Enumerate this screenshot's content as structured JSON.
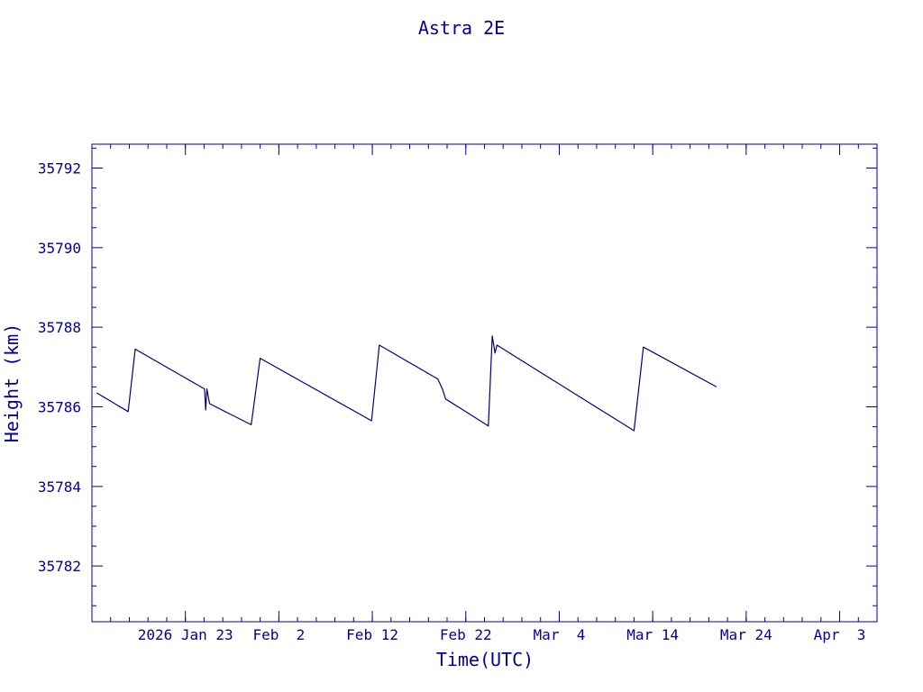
{
  "chart_data": {
    "type": "line",
    "title": "Astra 2E",
    "xlabel": "Time(UTC)",
    "ylabel": "Height (km)",
    "color": "#00007f",
    "xlim": [
      "2026-01-13",
      "2026-04-07"
    ],
    "ylim": [
      35780.6,
      35792.6
    ],
    "y_ticks": [
      "35782",
      "35784",
      "35786",
      "35788",
      "35790",
      "35792"
    ],
    "x_ticks": [
      {
        "date": "2026-01-23",
        "label": "2026 Jan 23"
      },
      {
        "date": "2026-02-02",
        "label": "Feb  2"
      },
      {
        "date": "2026-02-12",
        "label": "Feb 12"
      },
      {
        "date": "2026-02-22",
        "label": "Feb 22"
      },
      {
        "date": "2026-03-04",
        "label": "Mar  4"
      },
      {
        "date": "2026-03-14",
        "label": "Mar 14"
      },
      {
        "date": "2026-03-24",
        "label": "Mar 24"
      },
      {
        "date": "2026-04-03",
        "label": "Apr  3"
      }
    ],
    "series": [
      {
        "points": [
          [
            "2026-01-13T12:00",
            35786.35
          ],
          [
            "2026-01-16T21:00",
            35785.88
          ],
          [
            "2026-01-17T15:00",
            35787.45
          ],
          [
            "2026-01-25T01:00",
            35786.45
          ],
          [
            "2026-01-25T04:00",
            35785.92
          ],
          [
            "2026-01-25T07:00",
            35786.45
          ],
          [
            "2026-01-25T14:00",
            35786.08
          ],
          [
            "2026-01-30T01:00",
            35785.55
          ],
          [
            "2026-01-31T00:00",
            35787.22
          ],
          [
            "2026-02-11T22:00",
            35785.65
          ],
          [
            "2026-02-12T18:00",
            35787.55
          ],
          [
            "2026-02-19T00:00",
            35786.7
          ],
          [
            "2026-02-19T12:00",
            35786.45
          ],
          [
            "2026-02-19T20:00",
            35786.2
          ],
          [
            "2026-02-24T10:00",
            35785.52
          ],
          [
            "2026-02-24T20:00",
            35787.78
          ],
          [
            "2026-02-25T03:00",
            35787.35
          ],
          [
            "2026-02-25T08:00",
            35787.55
          ],
          [
            "2026-03-12T00:00",
            35785.4
          ],
          [
            "2026-03-13T00:00",
            35787.5
          ],
          [
            "2026-03-20T20:00",
            35786.5
          ]
        ]
      }
    ]
  }
}
